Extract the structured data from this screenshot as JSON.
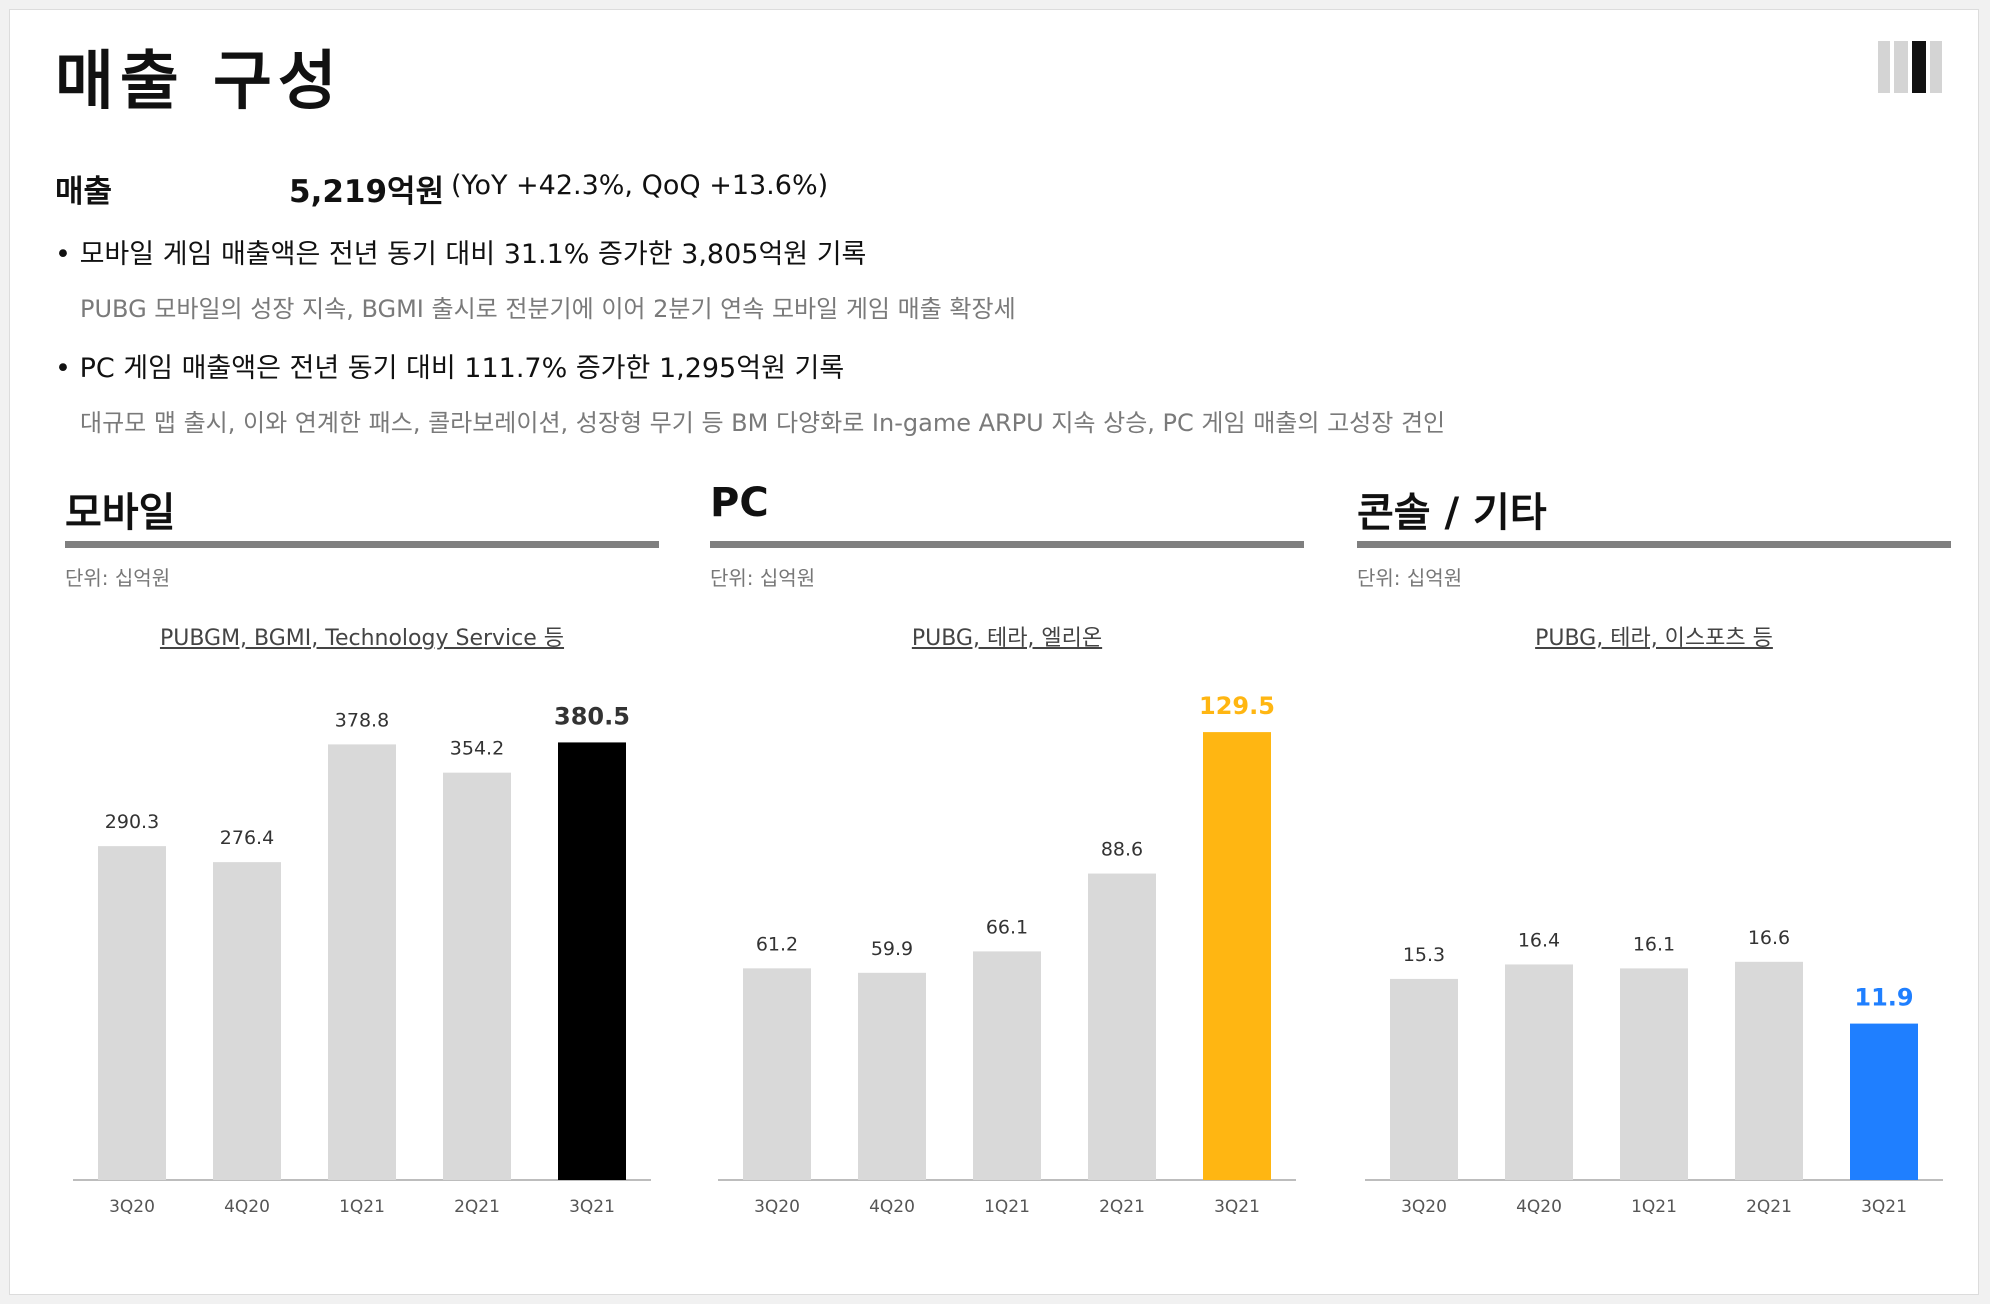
{
  "page": {
    "title": "매출 구성",
    "revenue": {
      "label": "매출",
      "value": "5,219억원",
      "growth": "(YoY +42.3%, QoQ +13.6%)"
    },
    "bullets": [
      {
        "text": "모바일 게임 매출액은 전년 동기 대비 31.1% 증가한 3,805억원 기록",
        "detail": "PUBG 모바일의 성장 지속, BGMI 출시로 전분기에 이어 2분기 연속 모바일 게임 매출 확장세"
      },
      {
        "text": "PC 게임 매출액은 전년 동기 대비 111.7% 증가한 1,295억원 기록",
        "detail": "대규모 맵 출시, 이와 연계한 패스, 콜라보레이션, 성장형 무기 등 BM 다양화로 In-game ARPU 지속 상승, PC 게임 매출의 고성장 견인"
      }
    ],
    "bullet_symbol": "•",
    "logo_colors": [
      "#d4d4d4",
      "#d4d4d4",
      "#111111",
      "#d4d4d4"
    ]
  },
  "panels": [
    {
      "title": "모바일",
      "unit": "단위: 십억원",
      "subtitle": "PUBGM, BGMI, Technology Service 등"
    },
    {
      "title": "PC",
      "unit": "단위: 십억원",
      "subtitle": "PUBG, 테라, 엘리온"
    },
    {
      "title": "콘솔 / 기타",
      "unit": "단위: 십억원",
      "subtitle": "PUBG, 테라, 이스포츠 등"
    }
  ],
  "chart_data": [
    {
      "type": "bar",
      "categories": [
        "3Q20",
        "4Q20",
        "1Q21",
        "2Q21",
        "3Q21"
      ],
      "values": [
        290.3,
        276.4,
        378.8,
        354.2,
        380.5
      ],
      "ylim": [
        0,
        400
      ],
      "base_color": "#d9d9d9",
      "highlight_color": "#000000",
      "highlight_label_color": "#333333"
    },
    {
      "type": "bar",
      "categories": [
        "3Q20",
        "4Q20",
        "1Q21",
        "2Q21",
        "3Q21"
      ],
      "values": [
        61.2,
        59.9,
        66.1,
        88.6,
        129.5
      ],
      "ylim": [
        0,
        133
      ],
      "base_color": "#d9d9d9",
      "highlight_color": "#ffb612",
      "highlight_label_color": "#ffb612"
    },
    {
      "type": "bar",
      "categories": [
        "3Q20",
        "4Q20",
        "1Q21",
        "2Q21",
        "3Q21"
      ],
      "values": [
        15.3,
        16.4,
        16.1,
        16.6,
        11.9
      ],
      "ylim": [
        0,
        35
      ],
      "base_color": "#d9d9d9",
      "highlight_color": "#1f7fff",
      "highlight_label_color": "#1f7fff"
    }
  ]
}
